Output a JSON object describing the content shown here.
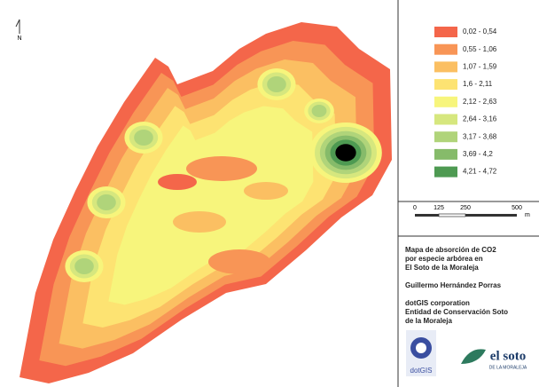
{
  "north_arrow": "N",
  "legend": {
    "items": [
      {
        "label": "0,02 - 0,54",
        "color": "#f4664a"
      },
      {
        "label": "0,55 - 1,06",
        "color": "#f89556"
      },
      {
        "label": "1,07 - 1,59",
        "color": "#fbbf62"
      },
      {
        "label": "1,6 - 2,11",
        "color": "#fde372"
      },
      {
        "label": "2,12 - 2,63",
        "color": "#f7f57c"
      },
      {
        "label": "2,64 - 3,16",
        "color": "#d6e77e"
      },
      {
        "label": "3,17 - 3,68",
        "color": "#b0d47a"
      },
      {
        "label": "3,69 - 4,2",
        "color": "#86bb6a"
      },
      {
        "label": "4,21 - 4,72",
        "color": "#4e9a52"
      }
    ]
  },
  "scale_bar": {
    "ticks": [
      "0",
      "125",
      "250",
      "500"
    ],
    "unit": "m"
  },
  "info": {
    "title": [
      "Mapa de absorción de CO2",
      "por especie arbórea en",
      "El Soto de la Moraleja"
    ],
    "author": "Guillermo Hernández Porras",
    "org": [
      "dotGIS corporation",
      "Entidad de Conservación Soto",
      "de la Moraleja"
    ]
  },
  "logos": {
    "dotgis": "dotGIS",
    "soto": "el soto",
    "soto_sub": "DE LA MORALEJA"
  }
}
